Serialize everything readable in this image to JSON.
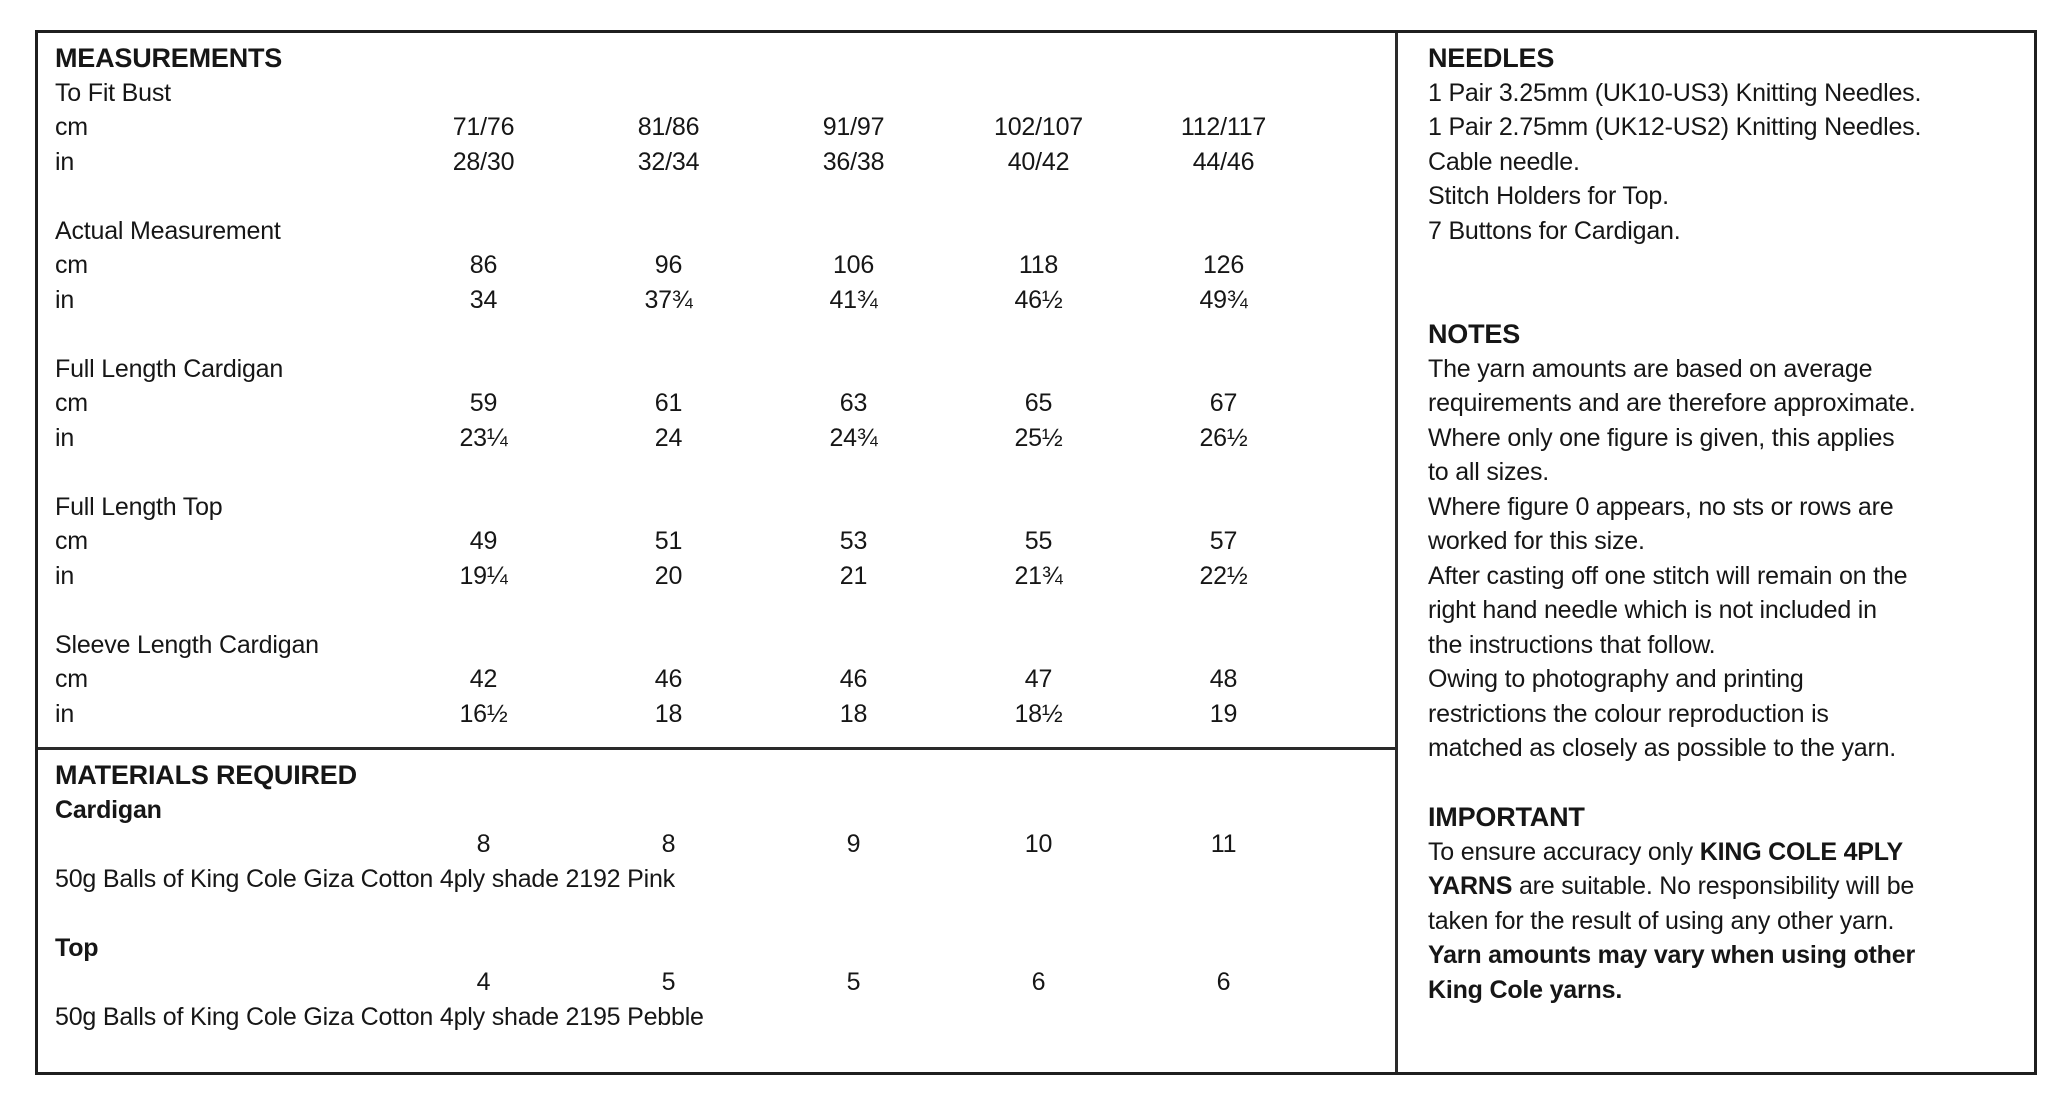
{
  "colors": {
    "ink": "#161616",
    "border": "#1f1f1f",
    "background": "#ffffff"
  },
  "measurements": {
    "title": "MEASUREMENTS",
    "unit_cm": "cm",
    "unit_in": "in",
    "sections": [
      {
        "label": "To Fit Bust",
        "cm": [
          "71/76",
          "81/86",
          "91/97",
          "102/107",
          "112/117"
        ],
        "in": [
          "28/30",
          "32/34",
          "36/38",
          "40/42",
          "44/46"
        ]
      },
      {
        "label": "Actual Measurement",
        "cm": [
          "86",
          "96",
          "106",
          "118",
          "126"
        ],
        "in": [
          "34",
          "37¾",
          "41¾",
          "46½",
          "49¾"
        ]
      },
      {
        "label": "Full Length Cardigan",
        "cm": [
          "59",
          "61",
          "63",
          "65",
          "67"
        ],
        "in": [
          "23¼",
          "24",
          "24¾",
          "25½",
          "26½"
        ]
      },
      {
        "label": "Full Length Top",
        "cm": [
          "49",
          "51",
          "53",
          "55",
          "57"
        ],
        "in": [
          "19¼",
          "20",
          "21",
          "21¾",
          "22½"
        ]
      },
      {
        "label": "Sleeve Length Cardigan",
        "cm": [
          "42",
          "46",
          "46",
          "47",
          "48"
        ],
        "in": [
          "16½",
          "18",
          "18",
          "18½",
          "19"
        ]
      }
    ]
  },
  "materials": {
    "title": "MATERIALS REQUIRED",
    "items": [
      {
        "name": "Cardigan",
        "quantities": [
          "8",
          "8",
          "9",
          "10",
          "11"
        ],
        "description": "50g Balls of King Cole Giza Cotton 4ply shade 2192 Pink"
      },
      {
        "name": "Top",
        "quantities": [
          "4",
          "5",
          "5",
          "6",
          "6"
        ],
        "description": "50g Balls of King Cole Giza Cotton 4ply shade 2195 Pebble"
      }
    ]
  },
  "needles": {
    "title": "NEEDLES",
    "lines": [
      "1 Pair 3.25mm (UK10-US3) Knitting Needles.",
      "1 Pair 2.75mm (UK12-US2) Knitting Needles.",
      "Cable needle.",
      "Stitch Holders for Top.",
      "7 Buttons for Cardigan."
    ]
  },
  "notes": {
    "title": "NOTES",
    "lines": [
      "The yarn amounts are based on average",
      "requirements and are therefore approximate.",
      "Where only one figure is given, this applies",
      "to all sizes.",
      "Where figure 0 appears, no sts or rows are",
      "worked for this size.",
      "After casting off one stitch will remain on the",
      "right hand needle which is not included in",
      "the instructions that follow.",
      "Owing to photography and printing",
      "restrictions the colour reproduction is",
      "matched as closely as possible to the yarn."
    ]
  },
  "important": {
    "title": "IMPORTANT",
    "lines": [
      {
        "segments": [
          {
            "text": "To ensure accuracy only ",
            "bold": false
          },
          {
            "text": "KING COLE 4PLY",
            "bold": true
          }
        ]
      },
      {
        "segments": [
          {
            "text": "YARNS",
            "bold": true
          },
          {
            "text": " are suitable. No responsibility will be",
            "bold": false
          }
        ]
      },
      {
        "segments": [
          {
            "text": "taken for the result of using any other yarn.",
            "bold": false
          }
        ]
      },
      {
        "segments": [
          {
            "text": "Yarn amounts may vary when using other",
            "bold": true
          }
        ]
      },
      {
        "segments": [
          {
            "text": "King Cole yarns.",
            "bold": true
          }
        ]
      }
    ]
  }
}
